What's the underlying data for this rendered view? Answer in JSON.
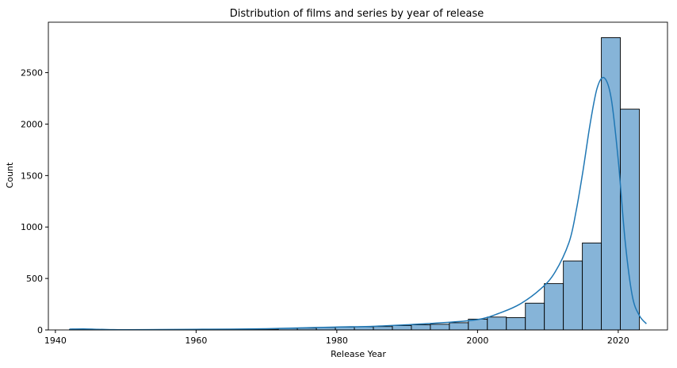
{
  "chart_data": {
    "type": "bar",
    "title": "Distribution of films and series by year of release",
    "xlabel": "Release Year",
    "ylabel": "Count",
    "xlim": [
      1939,
      2027
    ],
    "ylim": [
      0,
      2990
    ],
    "x_ticks": [
      1940,
      1960,
      1980,
      2000,
      2020
    ],
    "y_ticks": [
      0,
      500,
      1000,
      1500,
      2000,
      2500
    ],
    "grid": false,
    "bins": [
      {
        "start": 1942.0,
        "end": 1944.7,
        "count": 5
      },
      {
        "start": 1944.7,
        "end": 1947.4,
        "count": 2
      },
      {
        "start": 1947.4,
        "end": 1950.1,
        "count": 1
      },
      {
        "start": 1950.1,
        "end": 1952.8,
        "count": 1
      },
      {
        "start": 1952.8,
        "end": 1955.5,
        "count": 3
      },
      {
        "start": 1955.5,
        "end": 1958.2,
        "count": 3
      },
      {
        "start": 1958.2,
        "end": 1960.9,
        "count": 4
      },
      {
        "start": 1960.9,
        "end": 1963.6,
        "count": 3
      },
      {
        "start": 1963.6,
        "end": 1966.3,
        "count": 5
      },
      {
        "start": 1966.3,
        "end": 1969.0,
        "count": 7
      },
      {
        "start": 1969.0,
        "end": 1971.7,
        "count": 8
      },
      {
        "start": 1971.7,
        "end": 1974.4,
        "count": 16
      },
      {
        "start": 1974.4,
        "end": 1977.1,
        "count": 18
      },
      {
        "start": 1977.1,
        "end": 1979.8,
        "count": 24
      },
      {
        "start": 1979.8,
        "end": 1982.5,
        "count": 28
      },
      {
        "start": 1982.5,
        "end": 1985.2,
        "count": 30
      },
      {
        "start": 1985.2,
        "end": 1987.9,
        "count": 33
      },
      {
        "start": 1987.9,
        "end": 1990.6,
        "count": 42
      },
      {
        "start": 1990.6,
        "end": 1993.3,
        "count": 50
      },
      {
        "start": 1993.3,
        "end": 1996.0,
        "count": 55
      },
      {
        "start": 1996.0,
        "end": 1998.7,
        "count": 70
      },
      {
        "start": 1998.7,
        "end": 2001.4,
        "count": 105
      },
      {
        "start": 2001.4,
        "end": 2004.1,
        "count": 125
      },
      {
        "start": 2004.1,
        "end": 2006.8,
        "count": 120
      },
      {
        "start": 2006.8,
        "end": 2009.5,
        "count": 260
      },
      {
        "start": 2009.5,
        "end": 2012.2,
        "count": 450
      },
      {
        "start": 2012.2,
        "end": 2014.9,
        "count": 670
      },
      {
        "start": 2014.9,
        "end": 2017.6,
        "count": 845
      },
      {
        "start": 2017.6,
        "end": 2020.3,
        "count": 2840
      },
      {
        "start": 2020.3,
        "end": 2023.0,
        "count": 2145
      }
    ],
    "kde": {
      "x": [
        1942,
        1944,
        1946,
        1948,
        1950,
        1955,
        1960,
        1965,
        1970,
        1975,
        1980,
        1985,
        1990,
        1995,
        2000,
        2003,
        2006,
        2009,
        2011,
        2013,
        2014,
        2015,
        2016,
        2017,
        2018,
        2019,
        2020,
        2021,
        2022,
        2023,
        2024
      ],
      "y": [
        8,
        10,
        6,
        3,
        2,
        4,
        6,
        8,
        12,
        20,
        28,
        35,
        50,
        70,
        100,
        160,
        250,
        400,
        560,
        850,
        1150,
        1550,
        2000,
        2350,
        2450,
        2250,
        1650,
        850,
        330,
        140,
        60
      ]
    },
    "colors": {
      "bar_fill": "#86b4d8",
      "bar_edge": "#000000",
      "kde_line": "#1f77b4",
      "axes": "#000000"
    }
  }
}
